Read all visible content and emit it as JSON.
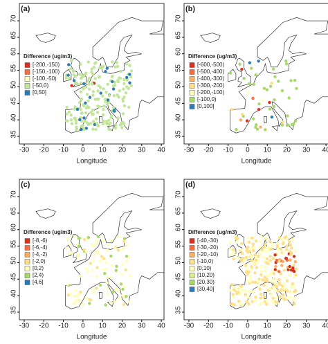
{
  "panels": [
    {
      "label": "(a)",
      "xlabel": "Longitude",
      "xticks": [
        -30,
        -20,
        -10,
        0,
        10,
        20,
        30,
        40
      ],
      "yticks": [
        35,
        40,
        45,
        50,
        55,
        60,
        65,
        70
      ],
      "legend_title": "Difference (ug/m3)",
      "legend": [
        {
          "label": "[-200,-150)",
          "color": "#d7301f"
        },
        {
          "label": "[-150,-100)",
          "color": "#f46d43"
        },
        {
          "label": "[-100,-50)",
          "color": "#ffffbf"
        },
        {
          "label": "[-50,0)",
          "color": "#c2e699"
        },
        {
          "label": "[0,50]",
          "color": "#2c7bb6"
        }
      ]
    },
    {
      "label": "(b)",
      "xlabel": "Longitude",
      "xticks": [
        -30,
        -20,
        -10,
        0,
        10,
        20,
        30,
        40
      ],
      "yticks": [
        35,
        40,
        45,
        50,
        55,
        60,
        65,
        70
      ],
      "legend_title": "Difference (ug/m3)",
      "legend": [
        {
          "label": "[-600,-500)",
          "color": "#d7301f"
        },
        {
          "label": "[-500,-400)",
          "color": "#f46d43"
        },
        {
          "label": "[-400,-300)",
          "color": "#fdae61"
        },
        {
          "label": "[-300,-200)",
          "color": "#fee08b"
        },
        {
          "label": "[-200,-100)",
          "color": "#ffffbf"
        },
        {
          "label": "[-100,0)",
          "color": "#a6d96a"
        },
        {
          "label": "[0,100]",
          "color": "#2c7bb6"
        }
      ]
    },
    {
      "label": "(c)",
      "xlabel": "Longitude",
      "xticks": [
        -30,
        -20,
        -10,
        0,
        10,
        20,
        30,
        40
      ],
      "yticks": [
        35,
        40,
        45,
        50,
        55,
        60,
        65,
        70
      ],
      "legend_title": "Difference (ug/m3)",
      "legend": [
        {
          "label": "[-8,-6)",
          "color": "#d7301f"
        },
        {
          "label": "[-6,-4)",
          "color": "#f46d43"
        },
        {
          "label": "[-4,-2)",
          "color": "#fdae61"
        },
        {
          "label": "[-2,0)",
          "color": "#fee08b"
        },
        {
          "label": "[0,2)",
          "color": "#ffffbf"
        },
        {
          "label": "[2,4)",
          "color": "#a6d96a"
        },
        {
          "label": "[4,6]",
          "color": "#2c7bb6"
        }
      ]
    },
    {
      "label": "(d)",
      "xlabel": "Longitude",
      "xticks": [
        -30,
        -20,
        -10,
        0,
        10,
        20,
        30,
        40
      ],
      "yticks": [
        35,
        40,
        45,
        50,
        55,
        60,
        65,
        70
      ],
      "legend_title": "Difference (ug/m3)",
      "legend": [
        {
          "label": "[-40,-30)",
          "color": "#d7301f"
        },
        {
          "label": "[-30,-20)",
          "color": "#f46d43"
        },
        {
          "label": "[-20,-10)",
          "color": "#fdae61"
        },
        {
          "label": "[-10,0)",
          "color": "#fee08b"
        },
        {
          "label": "[0,10)",
          "color": "#ffffbf"
        },
        {
          "label": "[10,20)",
          "color": "#d9ef8b"
        },
        {
          "label": "[20,30)",
          "color": "#a6d96a"
        },
        {
          "label": "[30,40]",
          "color": "#2c7bb6"
        }
      ]
    }
  ]
}
